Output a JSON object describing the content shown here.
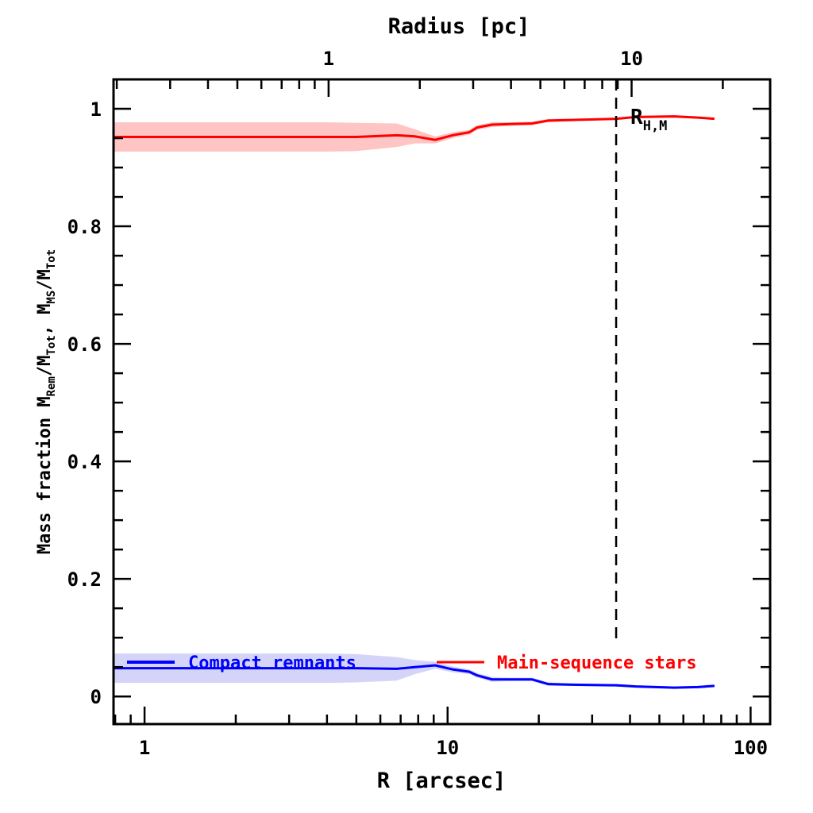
{
  "chart_data": {
    "type": "line",
    "title": "",
    "xlabel": "R [arcsec]",
    "ylabel_main": "Mass fraction",
    "ylabel_ratio": {
      "m1": "M",
      "s1": "Rem",
      "sep1": "/M",
      "s2": "Tot",
      "comma": ",  M",
      "s3": "MS",
      "sep2": "/M",
      "s4": "Tot"
    },
    "x_scale": "log",
    "xlim": [
      0.79,
      116
    ],
    "ylim": [
      -0.047,
      1.05
    ],
    "x_ticks": [
      1,
      10,
      100
    ],
    "x_tick_labels": [
      "1",
      "10",
      "100"
    ],
    "y_ticks": [
      0,
      0.2,
      0.4,
      0.6,
      0.8,
      1
    ],
    "y_tick_labels": [
      "0",
      "0.2",
      "0.4",
      "0.6",
      "0.8",
      "1"
    ],
    "top_axis": {
      "label": "Radius [pc]",
      "scale": "log",
      "pc_per_arcsec": 0.247,
      "ticks": [
        1,
        10
      ],
      "tick_labels": [
        "1",
        "10"
      ]
    },
    "vline": {
      "x": 36,
      "style": "dashed",
      "label_main": "R",
      "label_sub": "H,M",
      "color": "#000000"
    },
    "legend": {
      "placement": "bottom"
    },
    "series": [
      {
        "name": "Main-sequence stars",
        "color": "#ff0000",
        "band_color": "#ffc4c4",
        "x": [
          0.79,
          1,
          2,
          4,
          5,
          6.8,
          7.8,
          9.1,
          10.4,
          11.8,
          12.5,
          14,
          16,
          19,
          21.5,
          25.7,
          36,
          41.8,
          56,
          67,
          76
        ],
        "y": [
          0.952,
          0.952,
          0.952,
          0.952,
          0.952,
          0.955,
          0.953,
          0.947,
          0.955,
          0.96,
          0.968,
          0.973,
          0.974,
          0.975,
          0.98,
          0.981,
          0.983,
          0.986,
          0.987,
          0.985,
          0.983
        ],
        "err": [
          0.025,
          0.025,
          0.025,
          0.025,
          0.024,
          0.02,
          0.012,
          0.006,
          0.005,
          0.004,
          0.004,
          0.004,
          0.003,
          0.003,
          0.003,
          0.002,
          0.002,
          0.002,
          0.002,
          0.002,
          0.002
        ]
      },
      {
        "name": "Compact remnants",
        "color": "#0000ff",
        "band_color": "#d4d4f8",
        "x": [
          0.79,
          1,
          2,
          4,
          5,
          6.8,
          7.8,
          9.1,
          10.4,
          11.8,
          12.5,
          14,
          16,
          19,
          21.5,
          25.7,
          36,
          41.8,
          56,
          67,
          76
        ],
        "y": [
          0.048,
          0.048,
          0.048,
          0.048,
          0.048,
          0.047,
          0.05,
          0.053,
          0.046,
          0.042,
          0.036,
          0.029,
          0.029,
          0.029,
          0.021,
          0.02,
          0.019,
          0.017,
          0.015,
          0.016,
          0.018
        ],
        "err": [
          0.025,
          0.025,
          0.025,
          0.025,
          0.024,
          0.02,
          0.012,
          0.006,
          0.005,
          0.004,
          0.004,
          0.004,
          0.003,
          0.003,
          0.003,
          0.002,
          0.002,
          0.002,
          0.002,
          0.002,
          0.002
        ]
      }
    ]
  }
}
